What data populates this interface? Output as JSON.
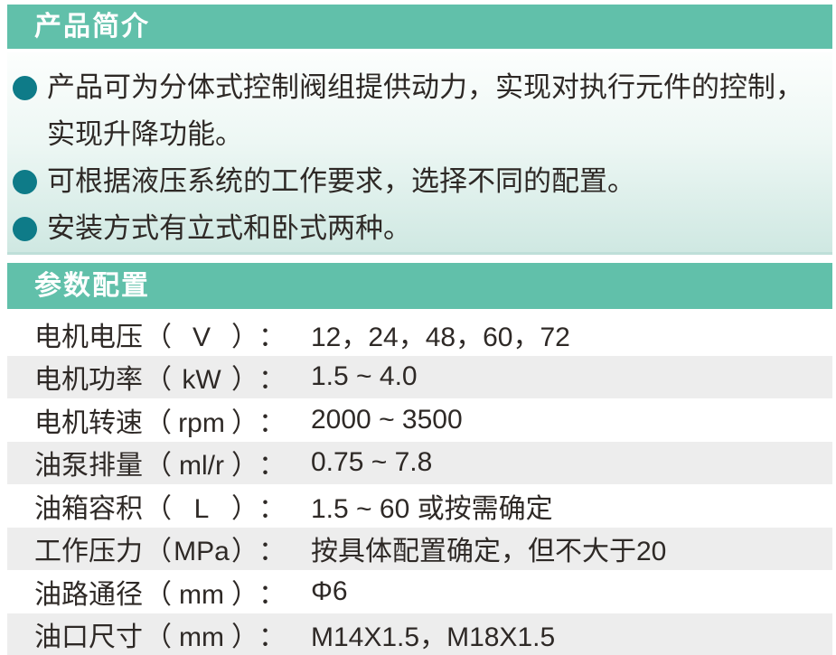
{
  "theme": {
    "band_color": "#61c0aa",
    "bullet_color": "#0e7b88",
    "alt_row_color": "#ededed",
    "intro_gradient_bottom": "#cfe8e2",
    "text_color": "#2e2926"
  },
  "intro": {
    "title": "产品简介",
    "bullets": [
      "产品可为分体式控制阀组提供动力，实现对执行元件的控制，实现升降功能。",
      "可根据液压系统的工作要求，选择不同的配置。",
      "安装方式有立式和卧式两种。"
    ]
  },
  "specs": {
    "title": "参数配置",
    "punctuation": {
      "open_paren": "（",
      "close_paren": "）",
      "colon": "："
    },
    "rows": [
      {
        "name": "电机电压",
        "unit": "V",
        "value": "12，24，48，60，72"
      },
      {
        "name": "电机功率",
        "unit": "kW",
        "value": "1.5 ~ 4.0"
      },
      {
        "name": "电机转速",
        "unit": "rpm",
        "value": "2000 ~ 3500"
      },
      {
        "name": "油泵排量",
        "unit": "ml/r",
        "value": "0.75 ~ 7.8"
      },
      {
        "name": "油箱容积",
        "unit": "L",
        "value": "1.5 ~ 60 或按需确定"
      },
      {
        "name": "工作压力",
        "unit": "MPa",
        "value": "按具体配置确定，但不大于20"
      },
      {
        "name": "油路通径",
        "unit": "mm",
        "value": "Φ6"
      },
      {
        "name": "油口尺寸",
        "unit": "mm",
        "value": "M14X1.5，M18X1.5"
      }
    ]
  }
}
